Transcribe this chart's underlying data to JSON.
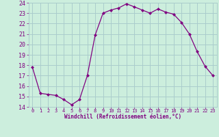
{
  "hours": [
    0,
    1,
    2,
    3,
    4,
    5,
    6,
    7,
    8,
    9,
    10,
    11,
    12,
    13,
    14,
    15,
    16,
    17,
    18,
    19,
    20,
    21,
    22,
    23
  ],
  "values": [
    17.8,
    15.3,
    15.2,
    15.1,
    14.7,
    14.2,
    14.7,
    17.0,
    20.9,
    23.0,
    23.3,
    23.5,
    23.9,
    23.6,
    23.3,
    23.0,
    23.4,
    23.1,
    22.9,
    22.1,
    21.0,
    19.3,
    17.9,
    17.0
  ],
  "line_color": "#800080",
  "marker": "D",
  "marker_size": 2.0,
  "bg_color": "#cceedd",
  "grid_color": "#aacccc",
  "xlabel": "Windchill (Refroidissement éolien,°C)",
  "xlabel_color": "#800080",
  "tick_color": "#800080",
  "ylim": [
    14,
    24
  ],
  "xlim": [
    -0.5,
    23.5
  ],
  "yticks": [
    14,
    15,
    16,
    17,
    18,
    19,
    20,
    21,
    22,
    23,
    24
  ],
  "xticks": [
    0,
    1,
    2,
    3,
    4,
    5,
    6,
    7,
    8,
    9,
    10,
    11,
    12,
    13,
    14,
    15,
    16,
    17,
    18,
    19,
    20,
    21,
    22,
    23
  ]
}
